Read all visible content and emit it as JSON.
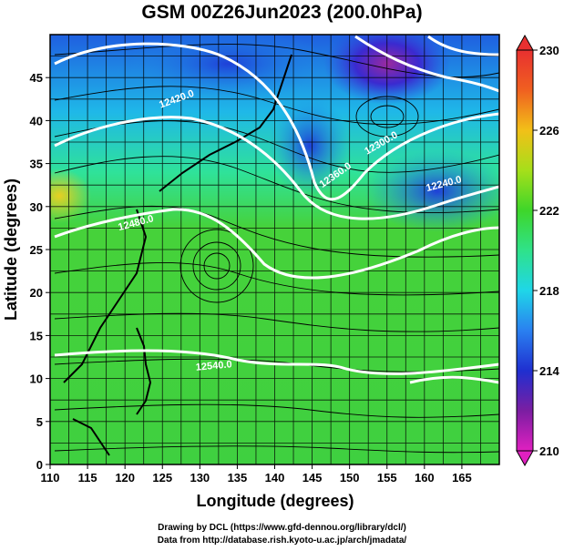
{
  "title": "GSM 00Z26Jun2023 (200.0hPa)",
  "xlabel": "Longitude (degrees)",
  "ylabel": "Latitude  (degrees)",
  "x_ticks": [
    "110",
    "115",
    "120",
    "125",
    "130",
    "135",
    "140",
    "145",
    "150",
    "155",
    "160",
    "165"
  ],
  "y_ticks": [
    "0",
    "5",
    "10",
    "15",
    "20",
    "25",
    "30",
    "35",
    "40",
    "45"
  ],
  "colorbar": {
    "ticks": [
      "210",
      "214",
      "218",
      "222",
      "226",
      "230"
    ],
    "colors": [
      "#e020c0",
      "#7b1ea2",
      "#1f2fd0",
      "#2a80f0",
      "#1fd6e8",
      "#2fe28a",
      "#3ed62a",
      "#a6df1a",
      "#f2c018",
      "#f06020",
      "#e83030"
    ]
  },
  "contour_labels": [
    "12360.0",
    "12300.0",
    "12240.0",
    "12420.0",
    "12480.0",
    "12540.0"
  ],
  "credits": {
    "line1": "Drawing by DCL (https://www.gfd-dennou.org/library/dcl/)",
    "line2": "Data from http://database.rish.kyoto-u.ac.jp/arch/jmadata/"
  }
}
